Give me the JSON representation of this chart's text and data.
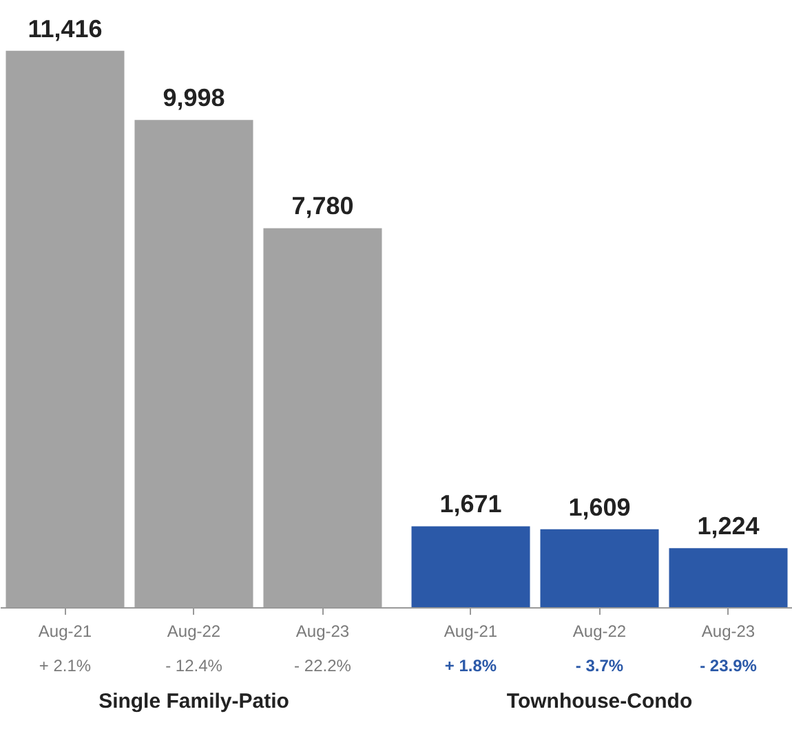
{
  "chart_data": {
    "type": "bar",
    "categories": [
      "Aug-21",
      "Aug-22",
      "Aug-23",
      "Aug-21",
      "Aug-22",
      "Aug-23"
    ],
    "values": [
      11416,
      9998,
      7780,
      1671,
      1609,
      1224
    ],
    "colors": [
      "#a3a3a3",
      "#a3a3a3",
      "#a3a3a3",
      "#2b59a8",
      "#2b59a8",
      "#2b59a8"
    ],
    "value_labels": [
      "11,416",
      "9,998",
      "7,780",
      "1,671",
      "1,609",
      "1,224"
    ],
    "annotations": [
      "+ 2.1%",
      "- 12.4%",
      "- 22.2%",
      "+ 1.8%",
      "- 3.7%",
      "- 23.9%",
      "Single Family-Patio",
      "Townhouse-Condo"
    ],
    "grid": false
  }
}
